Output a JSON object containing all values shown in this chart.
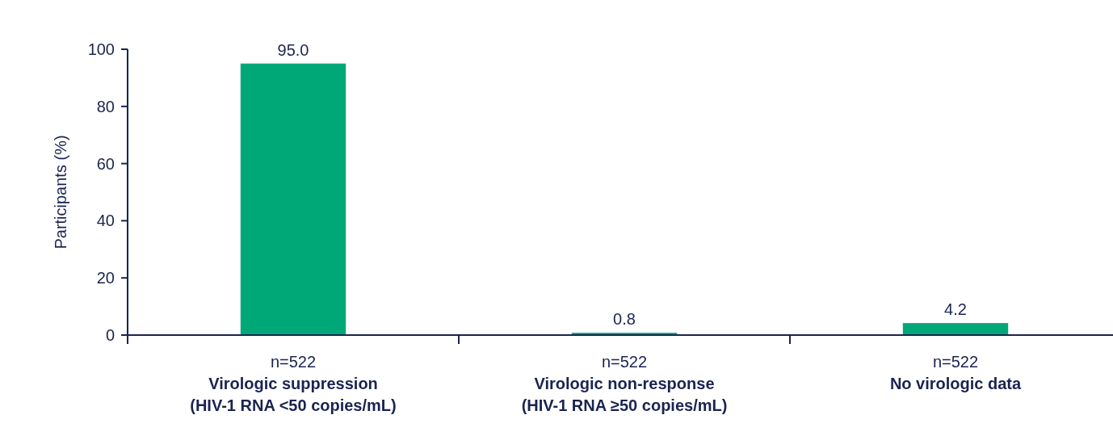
{
  "chart_data": {
    "type": "bar",
    "ylabel": "Participants (%)",
    "categories": [
      "n=522\nVirologic suppression\n(HIV-1 RNA <50 copies/mL)",
      "n=522\nVirologic non-response\n(HIV-1 RNA ≥50 copies/mL)",
      "n=522\nNo virologic data"
    ],
    "values": [
      95.0,
      0.8,
      4.2
    ],
    "value_labels": [
      "95.0",
      "0.8",
      "4.2"
    ],
    "color": "#00a878",
    "ylim": [
      0,
      100
    ],
    "yticks": [
      0,
      20,
      40,
      60,
      80,
      100
    ],
    "grid": false
  }
}
